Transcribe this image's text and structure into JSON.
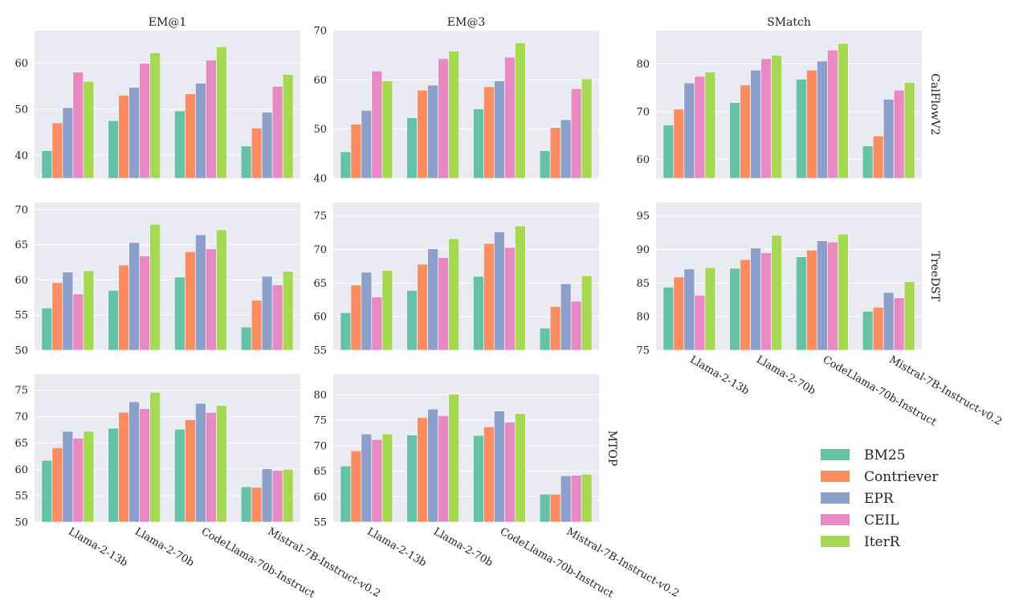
{
  "chart_data": {
    "type": "bar",
    "categories": [
      "Llama-2-13b",
      "Llama-2-70b",
      "CodeLlama-70b-Instruct",
      "Mistral-7B-Instruct-v0.2"
    ],
    "columns": [
      "EM@1",
      "EM@3",
      "SMatch"
    ],
    "rows": [
      "CalFlowV2",
      "TreeDST",
      "MTOP"
    ],
    "legend": {
      "placement": "bottom-right",
      "entries": [
        {
          "name": "BM25",
          "color": "#66c2a5"
        },
        {
          "name": "Contriever",
          "color": "#fc8d62"
        },
        {
          "name": "EPR",
          "color": "#8da0cb"
        },
        {
          "name": "CEIL",
          "color": "#e78ac3"
        },
        {
          "name": "IterR",
          "color": "#a6d854"
        }
      ]
    },
    "grid": true,
    "panels": [
      {
        "row": "CalFlowV2",
        "column": "EM@1",
        "ylim": [
          35,
          67
        ],
        "yticks": [
          40,
          50,
          60
        ],
        "series": [
          {
            "name": "BM25",
            "values": [
              41.0,
              47.5,
              49.6,
              42.0
            ]
          },
          {
            "name": "Contriever",
            "values": [
              47.0,
              53.0,
              53.3,
              45.9
            ]
          },
          {
            "name": "EPR",
            "values": [
              50.3,
              54.7,
              55.6,
              49.3
            ]
          },
          {
            "name": "CEIL",
            "values": [
              58.0,
              59.9,
              60.6,
              54.9
            ]
          },
          {
            "name": "IterR",
            "values": [
              56.0,
              62.2,
              63.5,
              57.5
            ]
          }
        ]
      },
      {
        "row": "CalFlowV2",
        "column": "EM@3",
        "ylim": [
          40,
          70
        ],
        "yticks": [
          40,
          50,
          60,
          70
        ],
        "series": [
          {
            "name": "BM25",
            "values": [
              45.4,
              52.3,
              54.1,
              45.6
            ]
          },
          {
            "name": "Contriever",
            "values": [
              51.0,
              57.9,
              58.6,
              50.3
            ]
          },
          {
            "name": "EPR",
            "values": [
              53.8,
              58.9,
              59.8,
              51.9
            ]
          },
          {
            "name": "CEIL",
            "values": [
              61.8,
              64.3,
              64.6,
              58.2
            ]
          },
          {
            "name": "IterR",
            "values": [
              59.8,
              65.8,
              67.5,
              60.2
            ]
          }
        ]
      },
      {
        "row": "CalFlowV2",
        "column": "SMatch",
        "ylim": [
          56,
          87
        ],
        "yticks": [
          60,
          70,
          80
        ],
        "series": [
          {
            "name": "BM25",
            "values": [
              67.2,
              71.9,
              76.8,
              62.8
            ]
          },
          {
            "name": "Contriever",
            "values": [
              70.5,
              75.6,
              78.7,
              64.9
            ]
          },
          {
            "name": "EPR",
            "values": [
              76.0,
              78.7,
              80.6,
              72.6
            ]
          },
          {
            "name": "CEIL",
            "values": [
              77.4,
              81.1,
              82.9,
              74.5
            ]
          },
          {
            "name": "IterR",
            "values": [
              78.3,
              81.8,
              84.3,
              76.1
            ]
          }
        ]
      },
      {
        "row": "TreeDST",
        "column": "EM@1",
        "ylim": [
          50,
          71
        ],
        "yticks": [
          50,
          55,
          60,
          65,
          70
        ],
        "series": [
          {
            "name": "BM25",
            "values": [
              56.0,
              58.5,
              60.4,
              53.3
            ]
          },
          {
            "name": "Contriever",
            "values": [
              59.6,
              62.1,
              64.0,
              57.1
            ]
          },
          {
            "name": "EPR",
            "values": [
              61.1,
              65.3,
              66.4,
              60.5
            ]
          },
          {
            "name": "CEIL",
            "values": [
              58.0,
              63.4,
              64.4,
              59.3
            ]
          },
          {
            "name": "IterR",
            "values": [
              61.3,
              67.9,
              67.1,
              61.2
            ]
          }
        ]
      },
      {
        "row": "TreeDST",
        "column": "EM@3",
        "ylim": [
          55,
          77
        ],
        "yticks": [
          55,
          60,
          65,
          70,
          75
        ],
        "series": [
          {
            "name": "BM25",
            "values": [
              60.6,
              63.9,
              66.0,
              58.3
            ]
          },
          {
            "name": "Contriever",
            "values": [
              64.7,
              67.8,
              70.9,
              61.5
            ]
          },
          {
            "name": "EPR",
            "values": [
              66.6,
              70.1,
              72.6,
              64.9
            ]
          },
          {
            "name": "CEIL",
            "values": [
              62.9,
              68.8,
              70.3,
              62.3
            ]
          },
          {
            "name": "IterR",
            "values": [
              66.9,
              71.6,
              73.5,
              66.1
            ]
          }
        ]
      },
      {
        "row": "TreeDST",
        "column": "SMatch",
        "ylim": [
          75,
          97
        ],
        "yticks": [
          75,
          80,
          85,
          90,
          95
        ],
        "series": [
          {
            "name": "BM25",
            "values": [
              84.4,
              87.2,
              88.9,
              80.8
            ]
          },
          {
            "name": "Contriever",
            "values": [
              85.9,
              88.5,
              89.9,
              81.4
            ]
          },
          {
            "name": "EPR",
            "values": [
              87.1,
              90.2,
              91.3,
              83.6
            ]
          },
          {
            "name": "CEIL",
            "values": [
              83.2,
              89.5,
              91.1,
              82.8
            ]
          },
          {
            "name": "IterR",
            "values": [
              87.3,
              92.1,
              92.3,
              85.2
            ]
          }
        ]
      },
      {
        "row": "MTOP",
        "column": "EM@1",
        "ylim": [
          50,
          78
        ],
        "yticks": [
          50,
          55,
          60,
          65,
          70,
          75
        ],
        "series": [
          {
            "name": "BM25",
            "values": [
              61.7,
              67.8,
              67.6,
              56.7
            ]
          },
          {
            "name": "Contriever",
            "values": [
              64.1,
              70.8,
              69.4,
              56.6
            ]
          },
          {
            "name": "EPR",
            "values": [
              67.2,
              72.8,
              72.5,
              60.1
            ]
          },
          {
            "name": "CEIL",
            "values": [
              65.9,
              71.5,
              70.8,
              59.8
            ]
          },
          {
            "name": "IterR",
            "values": [
              67.2,
              74.6,
              72.1,
              60.0
            ]
          }
        ]
      },
      {
        "row": "MTOP",
        "column": "EM@3",
        "ylim": [
          55,
          84
        ],
        "yticks": [
          55,
          60,
          65,
          70,
          75,
          80
        ],
        "series": [
          {
            "name": "BM25",
            "values": [
              66.0,
              72.1,
              72.0,
              60.5
            ]
          },
          {
            "name": "Contriever",
            "values": [
              69.0,
              75.5,
              73.7,
              60.5
            ]
          },
          {
            "name": "EPR",
            "values": [
              72.3,
              77.2,
              76.8,
              64.1
            ]
          },
          {
            "name": "CEIL",
            "values": [
              71.2,
              75.9,
              74.6,
              64.2
            ]
          },
          {
            "name": "IterR",
            "values": [
              72.3,
              80.1,
              76.3,
              64.4
            ]
          }
        ]
      }
    ]
  }
}
